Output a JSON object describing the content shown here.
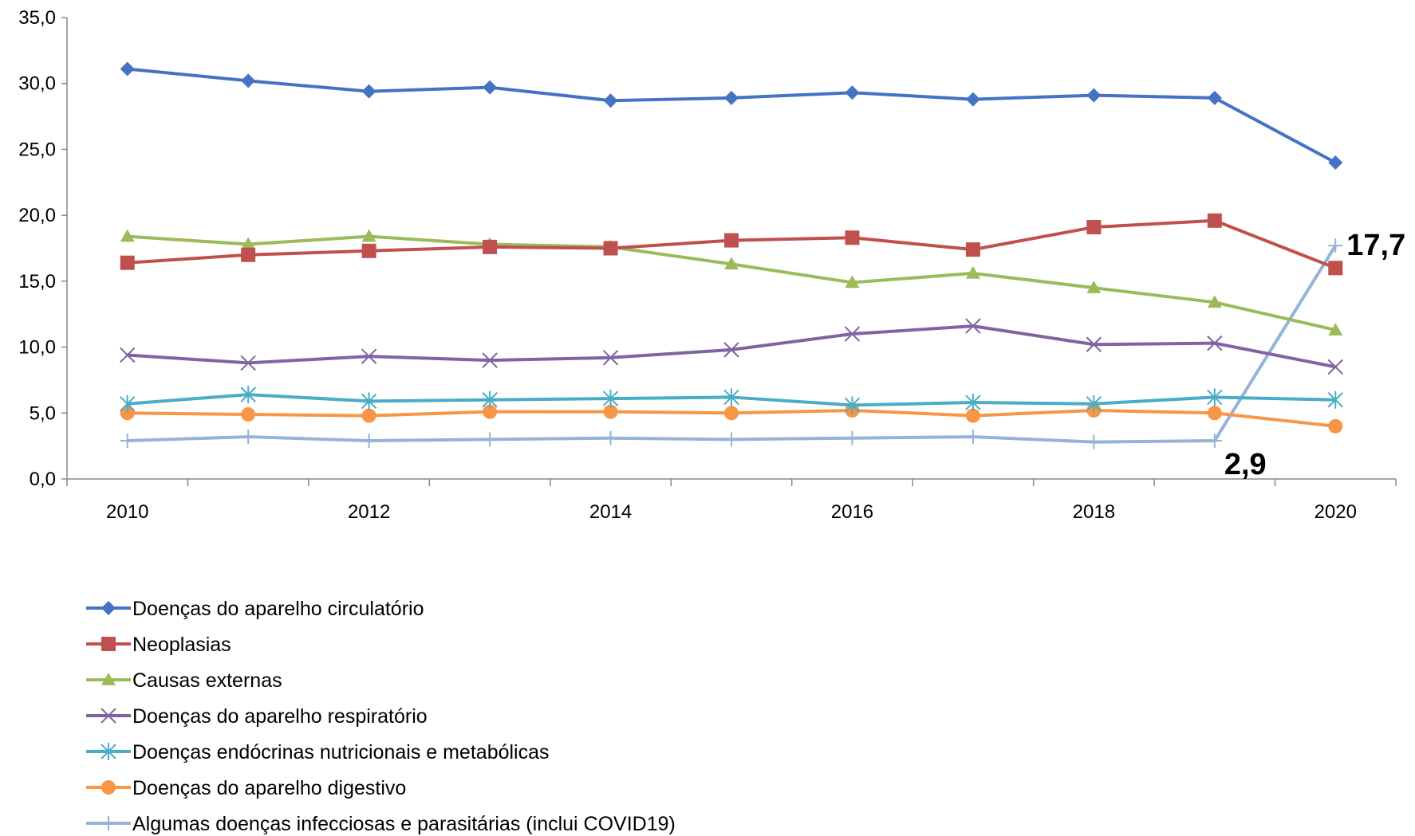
{
  "chart_data": {
    "type": "line",
    "x": [
      2010,
      2011,
      2012,
      2013,
      2014,
      2015,
      2016,
      2017,
      2018,
      2019,
      2020
    ],
    "x_tick_labels": [
      "2010",
      "2012",
      "2014",
      "2016",
      "2018",
      "2020"
    ],
    "y_tick_labels": [
      "0,0",
      "5,0",
      "10,0",
      "15,0",
      "20,0",
      "25,0",
      "30,0",
      "35,0"
    ],
    "ylim": [
      0,
      35
    ],
    "grid": false,
    "legend_position": "bottom",
    "series": [
      {
        "name": "Doenças do aparelho circulatório",
        "color": "#4472c4",
        "marker": "diamond",
        "values": [
          31.1,
          30.2,
          29.4,
          29.7,
          28.7,
          28.9,
          29.3,
          28.8,
          29.1,
          28.9,
          24.0
        ]
      },
      {
        "name": "Neoplasias",
        "color": "#c0504d",
        "marker": "square",
        "values": [
          16.4,
          17.0,
          17.3,
          17.6,
          17.5,
          18.1,
          18.3,
          17.4,
          19.1,
          19.6,
          16.0
        ]
      },
      {
        "name": "Causas externas",
        "color": "#9bbb59",
        "marker": "triangle",
        "values": [
          18.4,
          17.8,
          18.4,
          17.8,
          17.6,
          16.3,
          14.9,
          15.6,
          14.5,
          13.4,
          11.3
        ]
      },
      {
        "name": "Doenças do aparelho respiratório",
        "color": "#8064a2",
        "marker": "x",
        "values": [
          9.4,
          8.8,
          9.3,
          9.0,
          9.2,
          9.8,
          11.0,
          11.6,
          10.2,
          10.3,
          8.5
        ]
      },
      {
        "name": "Doenças endócrinas nutricionais e metabólicas",
        "color": "#4bacc6",
        "marker": "asterisk",
        "values": [
          5.7,
          6.4,
          5.9,
          6.0,
          6.1,
          6.2,
          5.6,
          5.8,
          5.7,
          6.2,
          6.0
        ]
      },
      {
        "name": "Doenças do aparelho digestivo",
        "color": "#f79646",
        "marker": "circle",
        "values": [
          5.0,
          4.9,
          4.8,
          5.1,
          5.1,
          5.0,
          5.2,
          4.8,
          5.2,
          5.0,
          4.0
        ]
      },
      {
        "name": "Algumas doenças infecciosas e parasitárias (inclui COVID19)",
        "color": "#95b3d7",
        "marker": "plus",
        "values": [
          2.9,
          3.2,
          2.9,
          3.0,
          3.1,
          3.0,
          3.1,
          3.2,
          2.8,
          2.9,
          17.7
        ]
      }
    ],
    "annotations": [
      {
        "text": "17,7",
        "x": 2020,
        "y": 17.7
      },
      {
        "text": "2,9",
        "x": 2019,
        "y": 2.9
      }
    ]
  }
}
